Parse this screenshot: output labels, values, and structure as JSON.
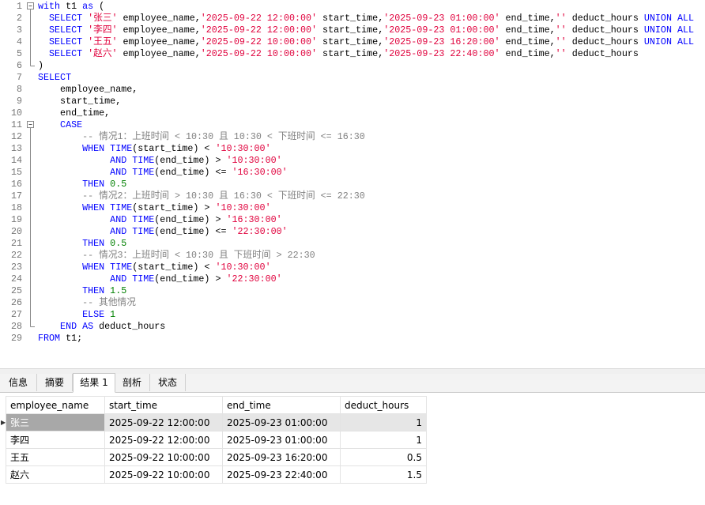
{
  "editor": {
    "lines": [
      {
        "number": 1,
        "segments": [
          [
            "with",
            "#0000ff"
          ],
          [
            " t1 ",
            "#000000"
          ],
          [
            "as",
            "#0000ff"
          ],
          [
            " (",
            "#000000"
          ]
        ]
      },
      {
        "number": 2,
        "segments": [
          [
            "  SELECT",
            "#0000ff"
          ],
          [
            " ",
            "#000000"
          ],
          [
            "'张三'",
            "#e0003c"
          ],
          [
            " employee_name,",
            "#000000"
          ],
          [
            "'2025-09-22 12:00:00'",
            "#e0003c"
          ],
          [
            " start_time,",
            "#000000"
          ],
          [
            "'2025-09-23 01:00:00'",
            "#e0003c"
          ],
          [
            " end_time,",
            "#000000"
          ],
          [
            "''",
            "#e0003c"
          ],
          [
            " deduct_hours ",
            "#000000"
          ],
          [
            "UNION ALL",
            "#0000ff"
          ]
        ]
      },
      {
        "number": 3,
        "segments": [
          [
            "  SELECT",
            "#0000ff"
          ],
          [
            " ",
            "#000000"
          ],
          [
            "'李四'",
            "#e0003c"
          ],
          [
            " employee_name,",
            "#000000"
          ],
          [
            "'2025-09-22 12:00:00'",
            "#e0003c"
          ],
          [
            " start_time,",
            "#000000"
          ],
          [
            "'2025-09-23 01:00:00'",
            "#e0003c"
          ],
          [
            " end_time,",
            "#000000"
          ],
          [
            "''",
            "#e0003c"
          ],
          [
            " deduct_hours ",
            "#000000"
          ],
          [
            "UNION ALL",
            "#0000ff"
          ]
        ]
      },
      {
        "number": 4,
        "segments": [
          [
            "  SELECT",
            "#0000ff"
          ],
          [
            " ",
            "#000000"
          ],
          [
            "'王五'",
            "#e0003c"
          ],
          [
            " employee_name,",
            "#000000"
          ],
          [
            "'2025-09-22 10:00:00'",
            "#e0003c"
          ],
          [
            " start_time,",
            "#000000"
          ],
          [
            "'2025-09-23 16:20:00'",
            "#e0003c"
          ],
          [
            " end_time,",
            "#000000"
          ],
          [
            "''",
            "#e0003c"
          ],
          [
            " deduct_hours ",
            "#000000"
          ],
          [
            "UNION ALL",
            "#0000ff"
          ]
        ]
      },
      {
        "number": 5,
        "segments": [
          [
            "  SELECT",
            "#0000ff"
          ],
          [
            " ",
            "#000000"
          ],
          [
            "'赵六'",
            "#e0003c"
          ],
          [
            " employee_name,",
            "#000000"
          ],
          [
            "'2025-09-22 10:00:00'",
            "#e0003c"
          ],
          [
            " start_time,",
            "#000000"
          ],
          [
            "'2025-09-23 22:40:00'",
            "#e0003c"
          ],
          [
            " end_time,",
            "#000000"
          ],
          [
            "''",
            "#e0003c"
          ],
          [
            " deduct_hours",
            "#000000"
          ]
        ]
      },
      {
        "number": 6,
        "segments": [
          [
            ")",
            "#000000"
          ]
        ]
      },
      {
        "number": 7,
        "segments": [
          [
            "SELECT",
            "#0000ff"
          ]
        ]
      },
      {
        "number": 8,
        "segments": [
          [
            "    employee_name,",
            "#000000"
          ]
        ]
      },
      {
        "number": 9,
        "segments": [
          [
            "    start_time,",
            "#000000"
          ]
        ]
      },
      {
        "number": 10,
        "segments": [
          [
            "    end_time,",
            "#000000"
          ]
        ]
      },
      {
        "number": 11,
        "segments": [
          [
            "    CASE",
            "#0000ff"
          ]
        ]
      },
      {
        "number": 12,
        "segments": [
          [
            "        -- 情况1：上班时间 < 10:30 且 10:30 < 下班时间 <= 16:30",
            "#808080"
          ]
        ]
      },
      {
        "number": 13,
        "segments": [
          [
            "        WHEN TIME",
            "#0000ff"
          ],
          [
            "(start_time) < ",
            "#000000"
          ],
          [
            "'10:30:00'",
            "#e0003c"
          ]
        ]
      },
      {
        "number": 14,
        "segments": [
          [
            "             AND TIME",
            "#0000ff"
          ],
          [
            "(end_time) > ",
            "#000000"
          ],
          [
            "'10:30:00'",
            "#e0003c"
          ]
        ]
      },
      {
        "number": 15,
        "segments": [
          [
            "             AND TIME",
            "#0000ff"
          ],
          [
            "(end_time) <= ",
            "#000000"
          ],
          [
            "'16:30:00'",
            "#e0003c"
          ]
        ]
      },
      {
        "number": 16,
        "segments": [
          [
            "        THEN",
            "#0000ff"
          ],
          [
            " 0.5",
            "#008000"
          ]
        ]
      },
      {
        "number": 17,
        "segments": [
          [
            "        -- 情况2：上班时间 > 10:30 且 16:30 < 下班时间 <= 22:30",
            "#808080"
          ]
        ]
      },
      {
        "number": 18,
        "segments": [
          [
            "        WHEN TIME",
            "#0000ff"
          ],
          [
            "(start_time) > ",
            "#000000"
          ],
          [
            "'10:30:00'",
            "#e0003c"
          ]
        ]
      },
      {
        "number": 19,
        "segments": [
          [
            "             AND TIME",
            "#0000ff"
          ],
          [
            "(end_time) > ",
            "#000000"
          ],
          [
            "'16:30:00'",
            "#e0003c"
          ]
        ]
      },
      {
        "number": 20,
        "segments": [
          [
            "             AND TIME",
            "#0000ff"
          ],
          [
            "(end_time) <= ",
            "#000000"
          ],
          [
            "'22:30:00'",
            "#e0003c"
          ]
        ]
      },
      {
        "number": 21,
        "segments": [
          [
            "        THEN",
            "#0000ff"
          ],
          [
            " 0.5",
            "#008000"
          ]
        ]
      },
      {
        "number": 22,
        "segments": [
          [
            "        -- 情况3：上班时间 < 10:30 且 下班时间 > 22:30",
            "#808080"
          ]
        ]
      },
      {
        "number": 23,
        "segments": [
          [
            "        WHEN TIME",
            "#0000ff"
          ],
          [
            "(start_time) < ",
            "#000000"
          ],
          [
            "'10:30:00'",
            "#e0003c"
          ]
        ]
      },
      {
        "number": 24,
        "segments": [
          [
            "             AND TIME",
            "#0000ff"
          ],
          [
            "(end_time) > ",
            "#000000"
          ],
          [
            "'22:30:00'",
            "#e0003c"
          ]
        ]
      },
      {
        "number": 25,
        "segments": [
          [
            "        THEN",
            "#0000ff"
          ],
          [
            " 1.5",
            "#008000"
          ]
        ]
      },
      {
        "number": 26,
        "segments": [
          [
            "        -- 其他情况",
            "#808080"
          ]
        ]
      },
      {
        "number": 27,
        "segments": [
          [
            "        ELSE",
            "#0000ff"
          ],
          [
            " 1",
            "#008000"
          ]
        ]
      },
      {
        "number": 28,
        "segments": [
          [
            "    END AS",
            "#0000ff"
          ],
          [
            " deduct_hours",
            "#000000"
          ]
        ]
      },
      {
        "number": 29,
        "segments": [
          [
            "FROM",
            "#0000ff"
          ],
          [
            " t1;",
            "#000000"
          ]
        ]
      }
    ]
  },
  "tabs": [
    "信息",
    "摘要",
    "结果 1",
    "剖析",
    "状态"
  ],
  "active_tab": 2,
  "table": {
    "columns": [
      "employee_name",
      "start_time",
      "end_time",
      "deduct_hours"
    ],
    "rows": [
      [
        "张三",
        "2025-09-22 12:00:00",
        "2025-09-23 01:00:00",
        1
      ],
      [
        "李四",
        "2025-09-22 12:00:00",
        "2025-09-23 01:00:00",
        1
      ],
      [
        "王五",
        "2025-09-22 10:00:00",
        "2025-09-23 16:20:00",
        0.5
      ],
      [
        "赵六",
        "2025-09-22 10:00:00",
        "2025-09-23 22:40:00",
        1.5
      ]
    ],
    "selected_row": 0
  }
}
